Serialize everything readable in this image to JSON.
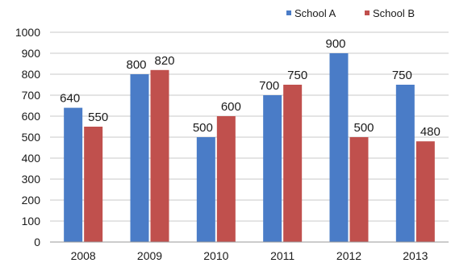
{
  "chart_data": {
    "type": "bar",
    "categories": [
      "2008",
      "2009",
      "2010",
      "2011",
      "2012",
      "2013"
    ],
    "series": [
      {
        "name": "School A",
        "values": [
          640,
          800,
          500,
          700,
          900,
          750
        ],
        "color": "#4a7cc7"
      },
      {
        "name": "School B",
        "values": [
          550,
          820,
          600,
          750,
          500,
          480
        ],
        "color": "#c0504d"
      }
    ],
    "ylim": [
      0,
      1000
    ],
    "yticks": [
      0,
      100,
      200,
      300,
      400,
      500,
      600,
      700,
      800,
      900,
      1000
    ],
    "grid": true,
    "legend_position": "top-right",
    "title": "",
    "xlabel": "",
    "ylabel": ""
  }
}
